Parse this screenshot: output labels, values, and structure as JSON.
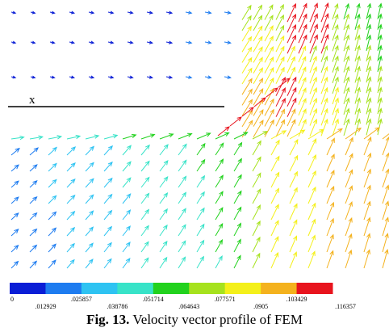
{
  "figure": {
    "axis_label": "x",
    "caption_label": "Fig. 13.",
    "caption_text": "Velocity vector profile of FEM"
  },
  "legend": {
    "colors": [
      "#0a1ed6",
      "#1e7cf0",
      "#2ec3f2",
      "#38e3c8",
      "#22d21e",
      "#a6e21e",
      "#f4f01a",
      "#f4b21e",
      "#e8141e"
    ],
    "upper_ticks": [
      "0",
      ".025857",
      ".051714",
      ".077571",
      ".103429"
    ],
    "lower_ticks": [
      ".012929",
      ".038786",
      ".064643",
      ".0905",
      ".116357"
    ]
  }
}
